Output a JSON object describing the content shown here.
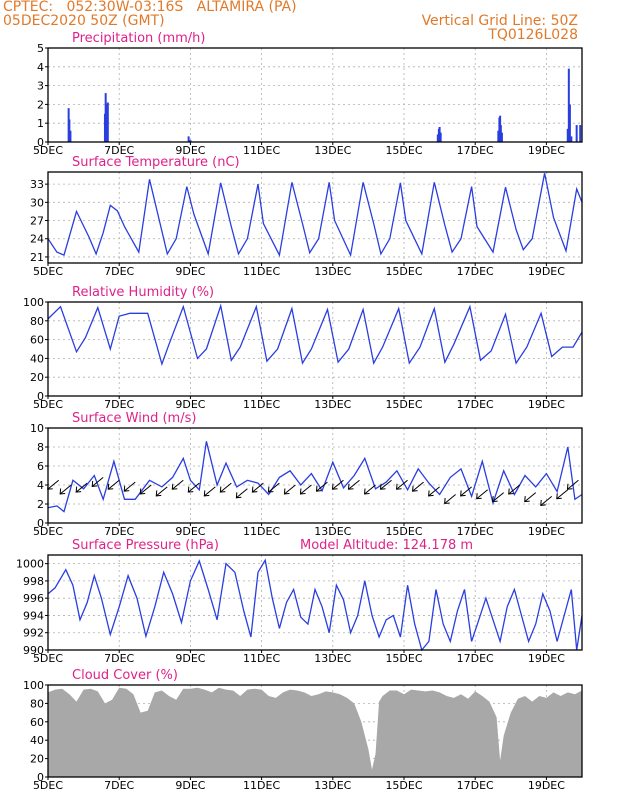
{
  "header": {
    "line1": "CPTEC:   052:30W-03:16S   ALTAMIRA (PA)",
    "line2": "05DEC2020 50Z (GMT)",
    "grid_line": "Vertical Grid Line: 50Z",
    "code": "TQ0126L028"
  },
  "colors": {
    "header": "#e07a2a",
    "panel_title": "#e0218a",
    "series": "#2a3ee0",
    "cloud_fill": "#a8a8a8",
    "grid": "#b0b0b0"
  },
  "x_axis": {
    "tick_labels": [
      "5DEC",
      "7DEC",
      "9DEC",
      "11DEC",
      "13DEC",
      "15DEC",
      "17DEC",
      "19DEC"
    ],
    "range_days": [
      5,
      20
    ],
    "tick_days": [
      5,
      7,
      9,
      11,
      13,
      15,
      17,
      19
    ]
  },
  "chart_data": [
    {
      "id": "precip",
      "type": "bar",
      "title": "Precipitation (mm/h)",
      "ylim": [
        0,
        5
      ],
      "yticks": [
        0,
        1,
        2,
        3,
        4,
        5
      ],
      "grid": true,
      "bars": [
        {
          "x": 5.58,
          "y": 1.8
        },
        {
          "x": 5.6,
          "y": 1.2
        },
        {
          "x": 5.63,
          "y": 0.6
        },
        {
          "x": 6.6,
          "y": 1.5
        },
        {
          "x": 6.62,
          "y": 2.6
        },
        {
          "x": 6.65,
          "y": 2.0
        },
        {
          "x": 6.68,
          "y": 2.1
        },
        {
          "x": 8.95,
          "y": 0.3
        },
        {
          "x": 9.0,
          "y": 0.1
        },
        {
          "x": 15.95,
          "y": 0.4
        },
        {
          "x": 15.98,
          "y": 0.7
        },
        {
          "x": 16.0,
          "y": 0.8
        },
        {
          "x": 16.03,
          "y": 0.5
        },
        {
          "x": 17.65,
          "y": 0.6
        },
        {
          "x": 17.68,
          "y": 1.3
        },
        {
          "x": 17.7,
          "y": 1.4
        },
        {
          "x": 17.72,
          "y": 0.9
        },
        {
          "x": 17.75,
          "y": 0.5
        },
        {
          "x": 19.6,
          "y": 0.7
        },
        {
          "x": 19.63,
          "y": 3.9
        },
        {
          "x": 19.66,
          "y": 2.0
        },
        {
          "x": 19.7,
          "y": 0.3
        },
        {
          "x": 19.85,
          "y": 0.9
        },
        {
          "x": 19.95,
          "y": 0.9
        }
      ]
    },
    {
      "id": "temp",
      "type": "line",
      "title": "Surface Temperature (nC)",
      "ylim": [
        20,
        35
      ],
      "yticks": [
        21,
        24,
        27,
        30,
        33
      ],
      "grid": true,
      "x": [
        5.0,
        5.25,
        5.45,
        5.8,
        6.15,
        6.35,
        6.55,
        6.75,
        6.95,
        7.15,
        7.55,
        7.85,
        8.15,
        8.35,
        8.6,
        8.9,
        9.1,
        9.5,
        9.85,
        10.15,
        10.35,
        10.6,
        10.9,
        11.05,
        11.5,
        11.85,
        12.15,
        12.35,
        12.6,
        12.9,
        13.05,
        13.5,
        13.85,
        14.15,
        14.35,
        14.6,
        14.9,
        15.05,
        15.5,
        15.85,
        16.15,
        16.35,
        16.6,
        16.9,
        17.05,
        17.5,
        17.85,
        18.15,
        18.35,
        18.6,
        18.95,
        19.2,
        19.55,
        19.85,
        20.0
      ],
      "y": [
        24.0,
        21.8,
        21.3,
        28.5,
        24.3,
        21.5,
        25.0,
        29.5,
        28.6,
        26.0,
        21.8,
        33.8,
        26.5,
        21.5,
        24.0,
        32.6,
        28.0,
        21.5,
        33.2,
        26.0,
        21.5,
        24.0,
        33.0,
        26.5,
        21.3,
        33.3,
        26.5,
        21.7,
        24.0,
        33.3,
        27.0,
        21.3,
        33.3,
        26.5,
        21.5,
        24.0,
        33.2,
        27.0,
        21.5,
        33.3,
        26.2,
        21.8,
        24.0,
        32.6,
        26.0,
        21.8,
        32.5,
        25.5,
        22.2,
        24.0,
        34.8,
        27.5,
        22.0,
        32.2,
        30.0
      ]
    },
    {
      "id": "rh",
      "type": "line",
      "title": "Relative Humidity (%)",
      "ylim": [
        0,
        100
      ],
      "yticks": [
        0,
        20,
        40,
        60,
        80,
        100
      ],
      "grid": true,
      "x": [
        5.0,
        5.35,
        5.8,
        6.05,
        6.4,
        6.75,
        7.0,
        7.3,
        7.8,
        8.2,
        8.4,
        8.8,
        9.2,
        9.45,
        9.85,
        10.15,
        10.4,
        10.85,
        11.15,
        11.45,
        11.85,
        12.15,
        12.4,
        12.85,
        13.15,
        13.45,
        13.85,
        14.15,
        14.4,
        14.85,
        15.15,
        15.45,
        15.85,
        16.15,
        16.4,
        16.85,
        17.15,
        17.45,
        17.85,
        18.15,
        18.45,
        18.85,
        19.15,
        19.45,
        19.75,
        20.0
      ],
      "y": [
        82,
        95,
        47,
        62,
        94,
        50,
        85,
        88,
        88,
        34,
        55,
        95,
        40,
        50,
        96,
        38,
        52,
        95,
        37,
        50,
        93,
        35,
        50,
        92,
        36,
        50,
        92,
        35,
        52,
        93,
        35,
        52,
        93,
        36,
        55,
        95,
        38,
        48,
        87,
        35,
        52,
        88,
        42,
        52,
        52,
        68
      ]
    },
    {
      "id": "wind",
      "type": "line",
      "title": "Surface Wind (m/s)",
      "ylim": [
        0,
        10
      ],
      "yticks": [
        0,
        2,
        4,
        6,
        8,
        10
      ],
      "grid": true,
      "x": [
        5.0,
        5.25,
        5.45,
        5.7,
        6.0,
        6.3,
        6.55,
        6.85,
        7.15,
        7.45,
        7.85,
        8.2,
        8.5,
        8.8,
        9.0,
        9.25,
        9.45,
        9.75,
        10.0,
        10.3,
        10.6,
        10.9,
        11.2,
        11.5,
        11.8,
        12.1,
        12.4,
        12.7,
        13.0,
        13.3,
        13.6,
        13.9,
        14.2,
        14.5,
        14.8,
        15.1,
        15.4,
        15.7,
        16.0,
        16.3,
        16.6,
        16.9,
        17.2,
        17.5,
        17.8,
        18.1,
        18.4,
        18.7,
        19.0,
        19.3,
        19.6,
        19.8,
        20.0
      ],
      "y": [
        1.6,
        1.8,
        1.2,
        4.5,
        3.6,
        5.0,
        2.5,
        6.5,
        2.5,
        2.5,
        4.5,
        3.8,
        4.8,
        6.8,
        4.5,
        3.5,
        8.6,
        4.0,
        6.3,
        3.8,
        4.5,
        4.2,
        3.0,
        4.8,
        5.5,
        4.0,
        5.2,
        3.4,
        6.4,
        3.7,
        5.0,
        6.8,
        3.6,
        4.3,
        5.5,
        3.5,
        5.7,
        4.2,
        3.0,
        4.8,
        5.7,
        2.8,
        6.5,
        2.1,
        5.5,
        3.0,
        5.0,
        3.8,
        5.2,
        3.3,
        8.0,
        2.5,
        3.0
      ],
      "arrows": [
        {
          "x": 5.3,
          "y": 4.5
        },
        {
          "x": 5.65,
          "y": 4.0
        },
        {
          "x": 6.1,
          "y": 4.2
        },
        {
          "x": 6.55,
          "y": 4.8
        },
        {
          "x": 7.0,
          "y": 4.5
        },
        {
          "x": 7.45,
          "y": 4.3
        },
        {
          "x": 7.9,
          "y": 4.0
        },
        {
          "x": 8.35,
          "y": 3.8
        },
        {
          "x": 8.8,
          "y": 4.5
        },
        {
          "x": 9.25,
          "y": 4.2
        },
        {
          "x": 9.7,
          "y": 3.8
        },
        {
          "x": 10.15,
          "y": 4.2
        },
        {
          "x": 10.6,
          "y": 3.6
        },
        {
          "x": 11.05,
          "y": 4.2
        },
        {
          "x": 11.5,
          "y": 4.2
        },
        {
          "x": 11.95,
          "y": 4.0
        },
        {
          "x": 12.4,
          "y": 4.0
        },
        {
          "x": 12.85,
          "y": 4.3
        },
        {
          "x": 13.3,
          "y": 4.5
        },
        {
          "x": 13.75,
          "y": 4.5
        },
        {
          "x": 14.2,
          "y": 4.0
        },
        {
          "x": 14.65,
          "y": 4.5
        },
        {
          "x": 15.1,
          "y": 4.5
        },
        {
          "x": 15.55,
          "y": 4.3
        },
        {
          "x": 16.0,
          "y": 3.8
        },
        {
          "x": 16.45,
          "y": 3.0
        },
        {
          "x": 16.9,
          "y": 3.8
        },
        {
          "x": 17.35,
          "y": 3.5
        },
        {
          "x": 17.8,
          "y": 3.2
        },
        {
          "x": 18.25,
          "y": 4.0
        },
        {
          "x": 18.7,
          "y": 3.2
        },
        {
          "x": 19.15,
          "y": 2.8
        },
        {
          "x": 19.6,
          "y": 3.5
        },
        {
          "x": 19.9,
          "y": 4.5
        }
      ]
    },
    {
      "id": "pressure",
      "type": "line",
      "title": "Surface Pressure (hPa)",
      "annotation": "Model Altitude: 124.178 m",
      "ylim": [
        990,
        1001
      ],
      "yticks": [
        990,
        992,
        994,
        996,
        998,
        1000
      ],
      "grid": true,
      "x": [
        5.0,
        5.2,
        5.5,
        5.7,
        5.9,
        6.1,
        6.3,
        6.5,
        6.75,
        7.0,
        7.25,
        7.5,
        7.75,
        8.0,
        8.25,
        8.5,
        8.75,
        9.0,
        9.25,
        9.5,
        9.75,
        10.0,
        10.25,
        10.5,
        10.7,
        10.9,
        11.1,
        11.3,
        11.5,
        11.7,
        11.9,
        12.1,
        12.3,
        12.5,
        12.7,
        12.9,
        13.1,
        13.3,
        13.5,
        13.7,
        13.9,
        14.1,
        14.3,
        14.5,
        14.7,
        14.9,
        15.1,
        15.3,
        15.5,
        15.7,
        15.9,
        16.1,
        16.3,
        16.5,
        16.7,
        16.9,
        17.1,
        17.3,
        17.5,
        17.7,
        17.9,
        18.1,
        18.3,
        18.5,
        18.7,
        18.9,
        19.1,
        19.3,
        19.5,
        19.7,
        19.85,
        20.0
      ],
      "y": [
        996.5,
        997.2,
        999.3,
        997.5,
        993.5,
        995.5,
        998.6,
        996.0,
        991.8,
        995.0,
        998.6,
        996.0,
        991.6,
        995.0,
        999.0,
        996.5,
        993.2,
        998.0,
        1000.3,
        997.0,
        993.5,
        1000.0,
        999.0,
        994.5,
        991.5,
        999.0,
        1000.4,
        996.0,
        992.5,
        995.5,
        997.0,
        993.8,
        993.0,
        997.0,
        995.0,
        992.0,
        997.5,
        995.8,
        992.0,
        994.0,
        998.0,
        994.0,
        991.5,
        993.5,
        994.0,
        991.5,
        997.5,
        993.0,
        990.0,
        991.0,
        997.0,
        993.0,
        991.0,
        994.5,
        997.0,
        991.0,
        993.5,
        996.0,
        993.5,
        991.0,
        995.0,
        997.0,
        994.0,
        991.0,
        993.0,
        996.5,
        994.5,
        991.0,
        994.0,
        997.0,
        990.0,
        994.0
      ]
    },
    {
      "id": "cloud",
      "type": "area",
      "title": "Cloud Cover (%)",
      "ylim": [
        0,
        100
      ],
      "yticks": [
        0,
        20,
        40,
        60,
        80,
        100
      ],
      "grid": true,
      "x": [
        5.0,
        5.2,
        5.4,
        5.6,
        5.8,
        6.0,
        6.2,
        6.4,
        6.6,
        6.8,
        7.0,
        7.2,
        7.4,
        7.6,
        7.8,
        8.0,
        8.2,
        8.4,
        8.6,
        8.8,
        9.0,
        9.2,
        9.4,
        9.6,
        9.8,
        10.0,
        10.2,
        10.4,
        10.6,
        10.8,
        11.0,
        11.2,
        11.4,
        11.6,
        11.8,
        12.0,
        12.2,
        12.4,
        12.6,
        12.8,
        13.0,
        13.2,
        13.4,
        13.6,
        13.8,
        14.0,
        14.1,
        14.2,
        14.3,
        14.4,
        14.6,
        14.8,
        15.0,
        15.2,
        15.4,
        15.6,
        15.8,
        16.0,
        16.2,
        16.4,
        16.6,
        16.8,
        17.0,
        17.2,
        17.4,
        17.6,
        17.7,
        17.8,
        18.0,
        18.2,
        18.4,
        18.6,
        18.8,
        19.0,
        19.2,
        19.4,
        19.6,
        19.8,
        20.0
      ],
      "y": [
        92,
        95,
        96,
        90,
        82,
        95,
        96,
        93,
        80,
        84,
        97,
        96,
        90,
        70,
        72,
        92,
        94,
        88,
        84,
        96,
        96,
        97,
        95,
        92,
        97,
        95,
        94,
        88,
        95,
        96,
        95,
        88,
        86,
        92,
        95,
        94,
        92,
        88,
        90,
        93,
        92,
        90,
        86,
        80,
        60,
        30,
        8,
        25,
        82,
        88,
        94,
        94,
        90,
        95,
        94,
        93,
        94,
        92,
        88,
        86,
        90,
        85,
        93,
        88,
        82,
        65,
        18,
        45,
        70,
        85,
        88,
        82,
        88,
        86,
        92,
        88,
        92,
        90,
        94
      ]
    }
  ]
}
